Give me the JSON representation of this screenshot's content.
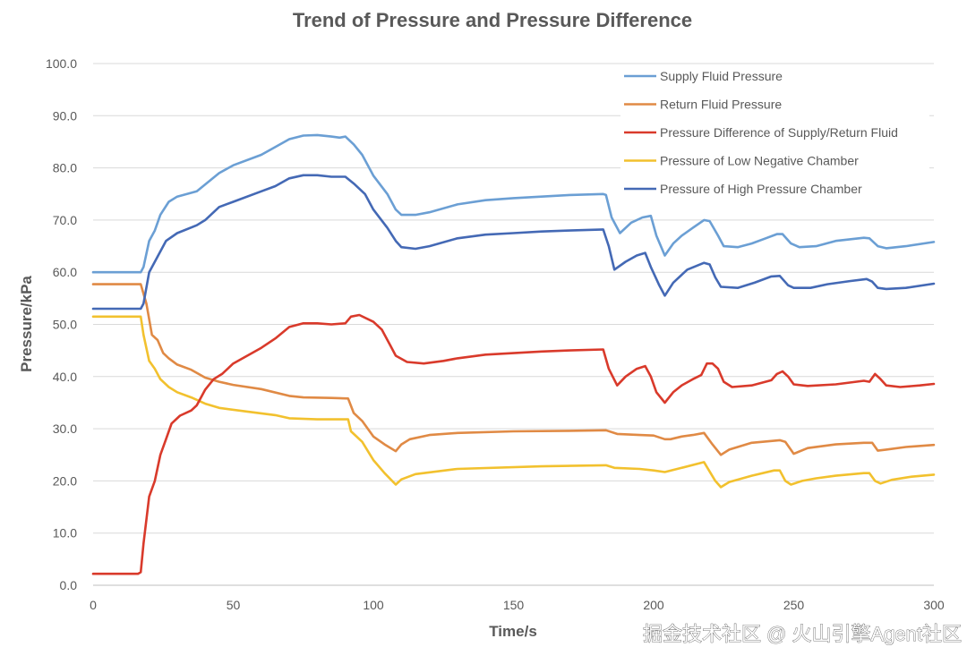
{
  "chart_data": {
    "type": "line",
    "title": "Trend of Pressure and Pressure Difference",
    "xlabel": "Time/s",
    "ylabel": "Pressure/kPa",
    "xlim": [
      0,
      300
    ],
    "ylim": [
      0,
      100
    ],
    "xticks": [
      "0",
      "50",
      "100",
      "150",
      "200",
      "250",
      "300"
    ],
    "yticks": [
      "0.0",
      "10.0",
      "20.0",
      "30.0",
      "40.0",
      "50.0",
      "60.0",
      "70.0",
      "80.0",
      "90.0",
      "100.0"
    ],
    "grid": "horizontal",
    "legend_position": "top-right",
    "series": [
      {
        "name": "Supply Fluid Pressure",
        "color": "#6b9fd4",
        "points": [
          [
            0,
            60
          ],
          [
            17,
            60
          ],
          [
            18,
            61
          ],
          [
            20,
            66
          ],
          [
            22,
            68
          ],
          [
            24,
            71
          ],
          [
            27,
            73.5
          ],
          [
            30,
            74.5
          ],
          [
            37,
            75.5
          ],
          [
            45,
            79
          ],
          [
            50,
            80.5
          ],
          [
            60,
            82.5
          ],
          [
            65,
            84
          ],
          [
            70,
            85.5
          ],
          [
            75,
            86.2
          ],
          [
            80,
            86.3
          ],
          [
            85,
            86
          ],
          [
            88,
            85.8
          ],
          [
            90,
            86
          ],
          [
            93,
            84.5
          ],
          [
            96,
            82.5
          ],
          [
            100,
            78.5
          ],
          [
            105,
            75
          ],
          [
            108,
            72
          ],
          [
            110,
            71
          ],
          [
            115,
            71
          ],
          [
            120,
            71.5
          ],
          [
            130,
            73
          ],
          [
            140,
            73.8
          ],
          [
            150,
            74.2
          ],
          [
            160,
            74.5
          ],
          [
            170,
            74.8
          ],
          [
            182,
            75
          ],
          [
            183,
            74.8
          ],
          [
            185,
            70.5
          ],
          [
            188,
            67.5
          ],
          [
            192,
            69.5
          ],
          [
            196,
            70.5
          ],
          [
            199,
            70.8
          ],
          [
            201,
            67
          ],
          [
            204,
            63.2
          ],
          [
            207,
            65.5
          ],
          [
            210,
            67
          ],
          [
            214,
            68.5
          ],
          [
            218,
            70
          ],
          [
            220,
            69.8
          ],
          [
            223,
            67
          ],
          [
            225,
            65
          ],
          [
            230,
            64.8
          ],
          [
            235,
            65.5
          ],
          [
            240,
            66.5
          ],
          [
            244,
            67.3
          ],
          [
            246,
            67.3
          ],
          [
            249,
            65.5
          ],
          [
            252,
            64.8
          ],
          [
            258,
            65
          ],
          [
            265,
            66
          ],
          [
            275,
            66.6
          ],
          [
            277,
            66.5
          ],
          [
            280,
            65
          ],
          [
            283,
            64.6
          ],
          [
            290,
            65
          ],
          [
            300,
            65.8
          ]
        ]
      },
      {
        "name": "Return Fluid Pressure",
        "color": "#e08a45",
        "points": [
          [
            0,
            57.7
          ],
          [
            17,
            57.7
          ],
          [
            19,
            54
          ],
          [
            21,
            48
          ],
          [
            23,
            47
          ],
          [
            25,
            44.5
          ],
          [
            27,
            43.5
          ],
          [
            30,
            42.3
          ],
          [
            35,
            41.3
          ],
          [
            40,
            39.8
          ],
          [
            45,
            39
          ],
          [
            50,
            38.4
          ],
          [
            60,
            37.6
          ],
          [
            70,
            36.3
          ],
          [
            75,
            36
          ],
          [
            85,
            35.9
          ],
          [
            91,
            35.8
          ],
          [
            93,
            33
          ],
          [
            96,
            31.5
          ],
          [
            100,
            28.5
          ],
          [
            104,
            27
          ],
          [
            108,
            25.7
          ],
          [
            110,
            27
          ],
          [
            113,
            28
          ],
          [
            120,
            28.8
          ],
          [
            130,
            29.2
          ],
          [
            150,
            29.5
          ],
          [
            170,
            29.6
          ],
          [
            183,
            29.7
          ],
          [
            187,
            29
          ],
          [
            195,
            28.8
          ],
          [
            200,
            28.7
          ],
          [
            204,
            28
          ],
          [
            206,
            28
          ],
          [
            210,
            28.5
          ],
          [
            214,
            28.8
          ],
          [
            218,
            29.2
          ],
          [
            221,
            27
          ],
          [
            224,
            25
          ],
          [
            227,
            26
          ],
          [
            235,
            27.3
          ],
          [
            245,
            27.8
          ],
          [
            247,
            27.5
          ],
          [
            250,
            25.2
          ],
          [
            255,
            26.3
          ],
          [
            265,
            27
          ],
          [
            275,
            27.3
          ],
          [
            278,
            27.3
          ],
          [
            280,
            25.8
          ],
          [
            283,
            26
          ],
          [
            290,
            26.5
          ],
          [
            300,
            26.9
          ]
        ]
      },
      {
        "name": "Pressure Difference of Supply/Return Fluid",
        "color": "#d93a2b",
        "points": [
          [
            0,
            2.2
          ],
          [
            16,
            2.2
          ],
          [
            17,
            2.5
          ],
          [
            18,
            8
          ],
          [
            20,
            17
          ],
          [
            22,
            20
          ],
          [
            24,
            25
          ],
          [
            26,
            28
          ],
          [
            28,
            31
          ],
          [
            31,
            32.5
          ],
          [
            35,
            33.5
          ],
          [
            37,
            34.5
          ],
          [
            40,
            37.5
          ],
          [
            43,
            39.5
          ],
          [
            46,
            40.5
          ],
          [
            50,
            42.5
          ],
          [
            60,
            45.5
          ],
          [
            65,
            47.3
          ],
          [
            70,
            49.5
          ],
          [
            75,
            50.2
          ],
          [
            80,
            50.2
          ],
          [
            85,
            50
          ],
          [
            90,
            50.2
          ],
          [
            92,
            51.5
          ],
          [
            95,
            51.8
          ],
          [
            100,
            50.5
          ],
          [
            103,
            49
          ],
          [
            106,
            46
          ],
          [
            108,
            44
          ],
          [
            112,
            42.8
          ],
          [
            118,
            42.5
          ],
          [
            125,
            43
          ],
          [
            130,
            43.5
          ],
          [
            140,
            44.2
          ],
          [
            150,
            44.5
          ],
          [
            160,
            44.8
          ],
          [
            170,
            45
          ],
          [
            182,
            45.2
          ],
          [
            184,
            41.5
          ],
          [
            187,
            38.3
          ],
          [
            190,
            40
          ],
          [
            194,
            41.5
          ],
          [
            197,
            42
          ],
          [
            199,
            40
          ],
          [
            201,
            37
          ],
          [
            204,
            35
          ],
          [
            207,
            37
          ],
          [
            210,
            38.3
          ],
          [
            214,
            39.5
          ],
          [
            217,
            40.3
          ],
          [
            219,
            42.5
          ],
          [
            221,
            42.5
          ],
          [
            223,
            41.5
          ],
          [
            225,
            39
          ],
          [
            228,
            38
          ],
          [
            235,
            38.3
          ],
          [
            242,
            39.3
          ],
          [
            244,
            40.5
          ],
          [
            246,
            41
          ],
          [
            248,
            40
          ],
          [
            250,
            38.5
          ],
          [
            255,
            38.2
          ],
          [
            265,
            38.5
          ],
          [
            275,
            39.2
          ],
          [
            277,
            39
          ],
          [
            279,
            40.5
          ],
          [
            281,
            39.5
          ],
          [
            283,
            38.3
          ],
          [
            288,
            38
          ],
          [
            295,
            38.3
          ],
          [
            300,
            38.6
          ]
        ]
      },
      {
        "name": "Pressure of Low Negative Chamber",
        "color": "#f2c12e",
        "points": [
          [
            0,
            51.5
          ],
          [
            17,
            51.5
          ],
          [
            18,
            48
          ],
          [
            20,
            43
          ],
          [
            22,
            41.5
          ],
          [
            24,
            39.5
          ],
          [
            27,
            38
          ],
          [
            30,
            37
          ],
          [
            35,
            36
          ],
          [
            40,
            34.8
          ],
          [
            45,
            34
          ],
          [
            55,
            33.3
          ],
          [
            65,
            32.6
          ],
          [
            70,
            32
          ],
          [
            80,
            31.8
          ],
          [
            91,
            31.8
          ],
          [
            92,
            29.5
          ],
          [
            96,
            27.5
          ],
          [
            100,
            24
          ],
          [
            104,
            21.5
          ],
          [
            108,
            19.3
          ],
          [
            110,
            20.3
          ],
          [
            115,
            21.3
          ],
          [
            130,
            22.3
          ],
          [
            160,
            22.8
          ],
          [
            183,
            23
          ],
          [
            186,
            22.5
          ],
          [
            195,
            22.3
          ],
          [
            200,
            22
          ],
          [
            204,
            21.7
          ],
          [
            210,
            22.5
          ],
          [
            218,
            23.6
          ],
          [
            222,
            20
          ],
          [
            224,
            18.8
          ],
          [
            227,
            19.8
          ],
          [
            235,
            21
          ],
          [
            243,
            22
          ],
          [
            245,
            22
          ],
          [
            247,
            20
          ],
          [
            249,
            19.3
          ],
          [
            253,
            20
          ],
          [
            258,
            20.5
          ],
          [
            265,
            21
          ],
          [
            275,
            21.5
          ],
          [
            277,
            21.5
          ],
          [
            279,
            20
          ],
          [
            281,
            19.5
          ],
          [
            285,
            20.2
          ],
          [
            292,
            20.8
          ],
          [
            300,
            21.2
          ]
        ]
      },
      {
        "name": "Pressure of High Pressure Chamber",
        "color": "#4469b5",
        "points": [
          [
            0,
            53
          ],
          [
            17,
            53
          ],
          [
            18,
            54
          ],
          [
            20,
            60
          ],
          [
            23,
            63
          ],
          [
            26,
            66
          ],
          [
            30,
            67.5
          ],
          [
            37,
            69
          ],
          [
            40,
            70
          ],
          [
            45,
            72.5
          ],
          [
            50,
            73.5
          ],
          [
            60,
            75.5
          ],
          [
            65,
            76.5
          ],
          [
            70,
            78
          ],
          [
            75,
            78.6
          ],
          [
            80,
            78.6
          ],
          [
            85,
            78.3
          ],
          [
            90,
            78.3
          ],
          [
            93,
            77
          ],
          [
            97,
            75
          ],
          [
            100,
            72
          ],
          [
            105,
            68.5
          ],
          [
            108,
            66
          ],
          [
            110,
            64.8
          ],
          [
            115,
            64.5
          ],
          [
            120,
            65
          ],
          [
            130,
            66.5
          ],
          [
            140,
            67.2
          ],
          [
            150,
            67.5
          ],
          [
            160,
            67.8
          ],
          [
            170,
            68
          ],
          [
            182,
            68.2
          ],
          [
            184,
            65
          ],
          [
            186,
            60.5
          ],
          [
            190,
            62
          ],
          [
            194,
            63.2
          ],
          [
            197,
            63.7
          ],
          [
            199,
            61
          ],
          [
            202,
            57.5
          ],
          [
            204,
            55.5
          ],
          [
            207,
            58
          ],
          [
            212,
            60.5
          ],
          [
            218,
            61.8
          ],
          [
            220,
            61.5
          ],
          [
            222,
            59
          ],
          [
            224,
            57.2
          ],
          [
            230,
            57
          ],
          [
            236,
            58
          ],
          [
            242,
            59.2
          ],
          [
            245,
            59.3
          ],
          [
            248,
            57.5
          ],
          [
            250,
            57
          ],
          [
            256,
            57
          ],
          [
            262,
            57.7
          ],
          [
            270,
            58.3
          ],
          [
            276,
            58.7
          ],
          [
            278,
            58.2
          ],
          [
            280,
            57
          ],
          [
            283,
            56.8
          ],
          [
            290,
            57
          ],
          [
            300,
            57.8
          ]
        ]
      }
    ]
  },
  "watermark": "掘金技术社区 @ 火山引擎Agent社区"
}
